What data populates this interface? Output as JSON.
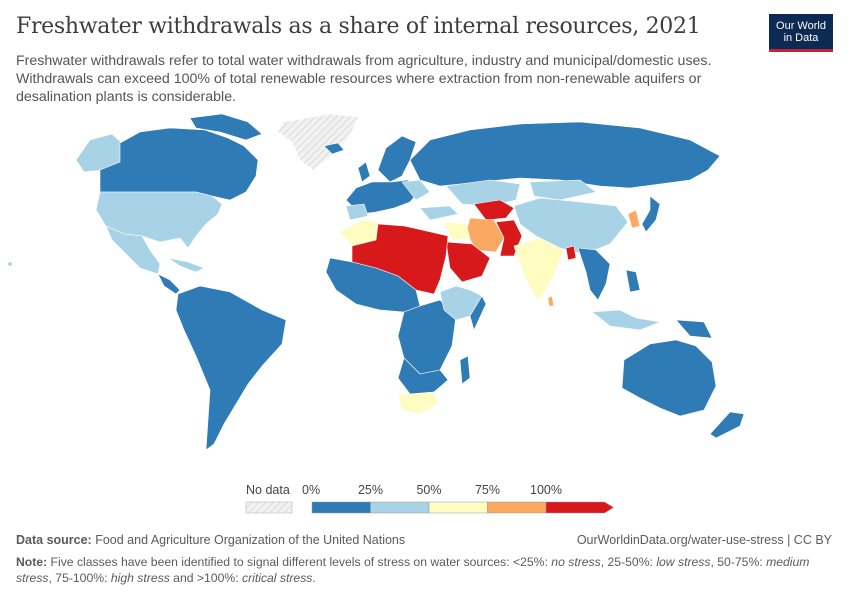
{
  "header": {
    "title": "Freshwater withdrawals as a share of internal resources, 2021",
    "subtitle": "Freshwater withdrawals refer to total water withdrawals from agriculture, industry and municipal/domestic uses. Withdrawals can exceed 100% of total renewable resources where extraction from non-renewable aquifers or desalination plants is considerable."
  },
  "logo": {
    "line1": "Our World",
    "line2": "in Data"
  },
  "colors": {
    "no_stress": "#2f7bb5",
    "low_stress": "#a8d2e6",
    "medium_stress": "#fefcc0",
    "high_stress": "#fba862",
    "critical_stress": "#d7191c",
    "no_data": "#e9e9e9",
    "border": "#ffffff"
  },
  "legend": {
    "no_data_label": "No data",
    "ticks": [
      "0%",
      "25%",
      "50%",
      "75%",
      "100%"
    ]
  },
  "footer": {
    "source_label": "Data source:",
    "source_text": "Food and Agriculture Organization of the United Nations",
    "url_text": "OurWorldinData.org/water-use-stress | CC BY",
    "note_label": "Note:",
    "note_pre": "Five classes have been identified to signal different levels of stress on water sources: <25%: ",
    "note_no_stress": "no stress",
    "note_sep1": ", 25-50%: ",
    "note_low_stress": "low stress",
    "note_sep2": ", 50-75%: ",
    "note_medium_stress": "medium stress",
    "note_sep3": ", 75-100%: ",
    "note_high_stress": "high stress",
    "note_sep4": " and >100%: ",
    "note_critical_stress": "critical stress",
    "note_end": "."
  }
}
